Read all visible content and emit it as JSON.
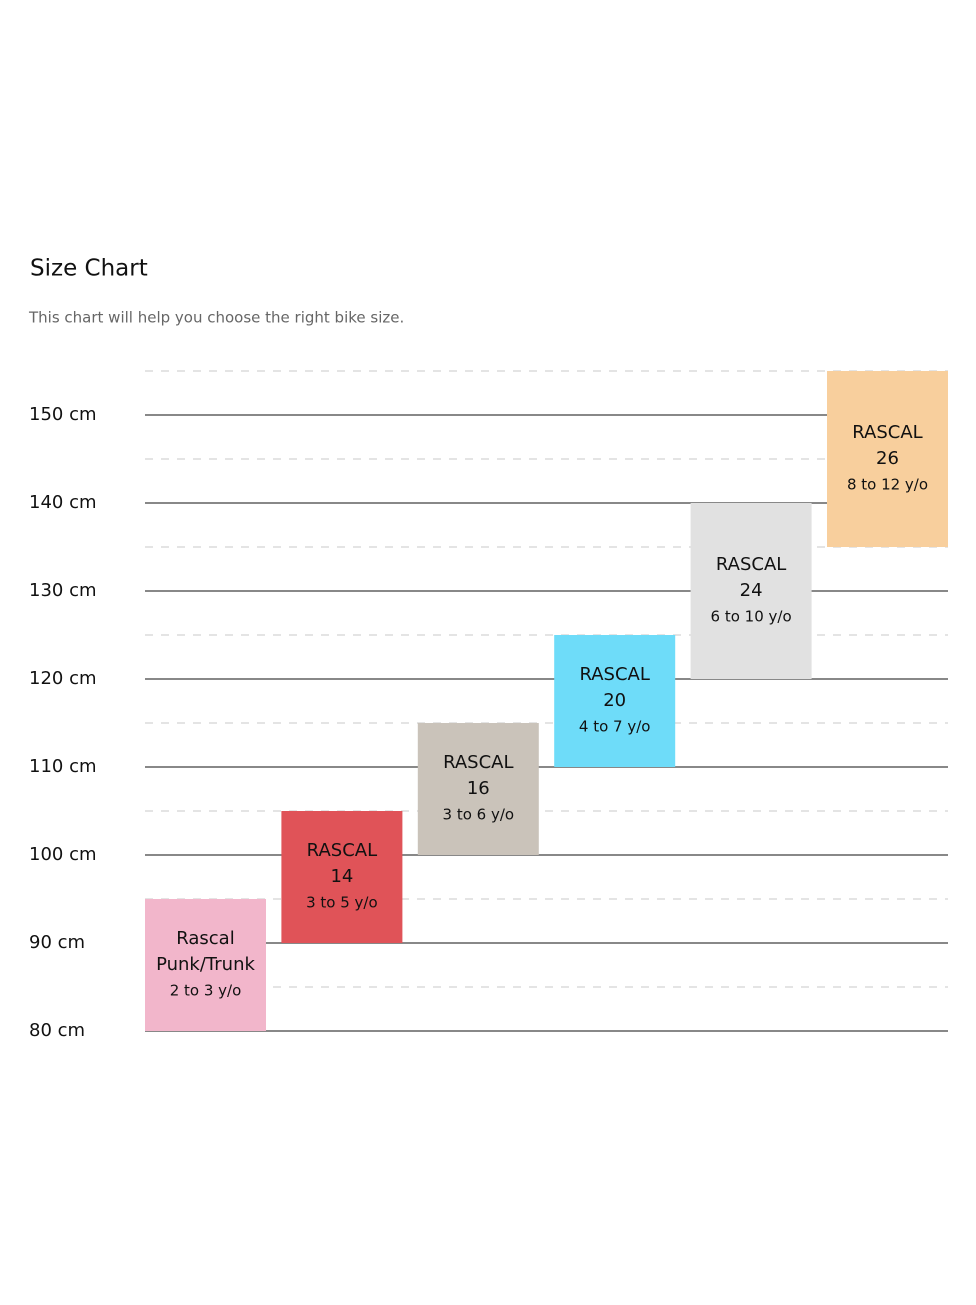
{
  "chart_data": {
    "type": "floating-bar",
    "title": "Size Chart",
    "subtitle": "This chart will help you choose the right bike size.",
    "categories": [
      [
        "Rascal",
        "Punk/Trunk"
      ],
      [
        "RASCAL",
        "14"
      ],
      [
        "RASCAL",
        "16"
      ],
      [
        "RASCAL",
        "20"
      ],
      [
        "RASCAL",
        "24"
      ],
      [
        "RASCAL",
        "26"
      ]
    ],
    "ages": [
      "2 to 3 y/o",
      "3 to 5 y/o",
      "3 to 6 y/o",
      "4 to 7 y/o",
      "6 to 10 y/o",
      "8 to 12 y/o"
    ],
    "low": [
      80,
      90,
      100,
      110,
      120,
      135
    ],
    "high": [
      95,
      105,
      115,
      125,
      140,
      155
    ],
    "colors": [
      "#f2b6cb",
      "#e05358",
      "#cac3ba",
      "#6edcf9",
      "#e1e1e1",
      "#f8cf9d"
    ],
    "ylim": [
      80,
      155
    ],
    "yticks": [
      {
        "value": 80,
        "label": "80 cm"
      },
      {
        "value": 90,
        "label": "90 cm"
      },
      {
        "value": 100,
        "label": "100 cm"
      },
      {
        "value": 110,
        "label": "110 cm"
      },
      {
        "value": 120,
        "label": "120 cm"
      },
      {
        "value": 130,
        "label": "130 cm"
      },
      {
        "value": 140,
        "label": "140 cm"
      },
      {
        "value": 150,
        "label": "150 cm"
      }
    ],
    "minor_yticks": [
      85,
      95,
      105,
      115,
      125,
      135,
      145,
      155
    ],
    "grid": true
  }
}
